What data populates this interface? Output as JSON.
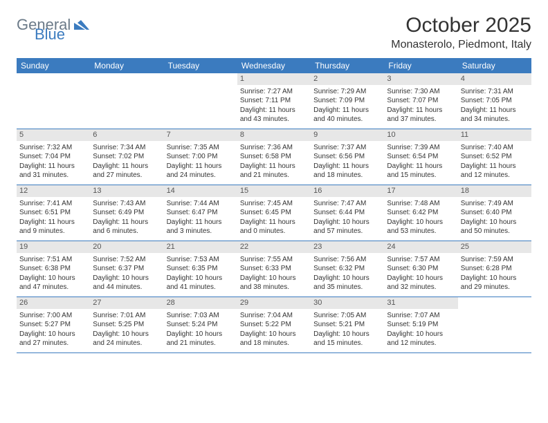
{
  "brand": {
    "text_general": "General",
    "text_blue": "Blue",
    "logo_color": "#3b7bbf",
    "gray_color": "#6b7a88"
  },
  "title": "October 2025",
  "location": "Monasterolo, Piedmont, Italy",
  "style": {
    "header_bg": "#3b7bbf",
    "header_text": "#ffffff",
    "daynum_bg": "#e7e7e7",
    "row_border": "#3b7bbf",
    "body_text": "#333333",
    "title_fontsize": 30,
    "location_fontsize": 16,
    "dayheader_fontsize": 12,
    "daynum_fontsize": 11,
    "cell_fontsize": 10
  },
  "day_names": [
    "Sunday",
    "Monday",
    "Tuesday",
    "Wednesday",
    "Thursday",
    "Friday",
    "Saturday"
  ],
  "weeks": [
    [
      null,
      null,
      null,
      {
        "n": "1",
        "sunrise": "Sunrise: 7:27 AM",
        "sunset": "Sunset: 7:11 PM",
        "daylight": "Daylight: 11 hours and 43 minutes."
      },
      {
        "n": "2",
        "sunrise": "Sunrise: 7:29 AM",
        "sunset": "Sunset: 7:09 PM",
        "daylight": "Daylight: 11 hours and 40 minutes."
      },
      {
        "n": "3",
        "sunrise": "Sunrise: 7:30 AM",
        "sunset": "Sunset: 7:07 PM",
        "daylight": "Daylight: 11 hours and 37 minutes."
      },
      {
        "n": "4",
        "sunrise": "Sunrise: 7:31 AM",
        "sunset": "Sunset: 7:05 PM",
        "daylight": "Daylight: 11 hours and 34 minutes."
      }
    ],
    [
      {
        "n": "5",
        "sunrise": "Sunrise: 7:32 AM",
        "sunset": "Sunset: 7:04 PM",
        "daylight": "Daylight: 11 hours and 31 minutes."
      },
      {
        "n": "6",
        "sunrise": "Sunrise: 7:34 AM",
        "sunset": "Sunset: 7:02 PM",
        "daylight": "Daylight: 11 hours and 27 minutes."
      },
      {
        "n": "7",
        "sunrise": "Sunrise: 7:35 AM",
        "sunset": "Sunset: 7:00 PM",
        "daylight": "Daylight: 11 hours and 24 minutes."
      },
      {
        "n": "8",
        "sunrise": "Sunrise: 7:36 AM",
        "sunset": "Sunset: 6:58 PM",
        "daylight": "Daylight: 11 hours and 21 minutes."
      },
      {
        "n": "9",
        "sunrise": "Sunrise: 7:37 AM",
        "sunset": "Sunset: 6:56 PM",
        "daylight": "Daylight: 11 hours and 18 minutes."
      },
      {
        "n": "10",
        "sunrise": "Sunrise: 7:39 AM",
        "sunset": "Sunset: 6:54 PM",
        "daylight": "Daylight: 11 hours and 15 minutes."
      },
      {
        "n": "11",
        "sunrise": "Sunrise: 7:40 AM",
        "sunset": "Sunset: 6:52 PM",
        "daylight": "Daylight: 11 hours and 12 minutes."
      }
    ],
    [
      {
        "n": "12",
        "sunrise": "Sunrise: 7:41 AM",
        "sunset": "Sunset: 6:51 PM",
        "daylight": "Daylight: 11 hours and 9 minutes."
      },
      {
        "n": "13",
        "sunrise": "Sunrise: 7:43 AM",
        "sunset": "Sunset: 6:49 PM",
        "daylight": "Daylight: 11 hours and 6 minutes."
      },
      {
        "n": "14",
        "sunrise": "Sunrise: 7:44 AM",
        "sunset": "Sunset: 6:47 PM",
        "daylight": "Daylight: 11 hours and 3 minutes."
      },
      {
        "n": "15",
        "sunrise": "Sunrise: 7:45 AM",
        "sunset": "Sunset: 6:45 PM",
        "daylight": "Daylight: 11 hours and 0 minutes."
      },
      {
        "n": "16",
        "sunrise": "Sunrise: 7:47 AM",
        "sunset": "Sunset: 6:44 PM",
        "daylight": "Daylight: 10 hours and 57 minutes."
      },
      {
        "n": "17",
        "sunrise": "Sunrise: 7:48 AM",
        "sunset": "Sunset: 6:42 PM",
        "daylight": "Daylight: 10 hours and 53 minutes."
      },
      {
        "n": "18",
        "sunrise": "Sunrise: 7:49 AM",
        "sunset": "Sunset: 6:40 PM",
        "daylight": "Daylight: 10 hours and 50 minutes."
      }
    ],
    [
      {
        "n": "19",
        "sunrise": "Sunrise: 7:51 AM",
        "sunset": "Sunset: 6:38 PM",
        "daylight": "Daylight: 10 hours and 47 minutes."
      },
      {
        "n": "20",
        "sunrise": "Sunrise: 7:52 AM",
        "sunset": "Sunset: 6:37 PM",
        "daylight": "Daylight: 10 hours and 44 minutes."
      },
      {
        "n": "21",
        "sunrise": "Sunrise: 7:53 AM",
        "sunset": "Sunset: 6:35 PM",
        "daylight": "Daylight: 10 hours and 41 minutes."
      },
      {
        "n": "22",
        "sunrise": "Sunrise: 7:55 AM",
        "sunset": "Sunset: 6:33 PM",
        "daylight": "Daylight: 10 hours and 38 minutes."
      },
      {
        "n": "23",
        "sunrise": "Sunrise: 7:56 AM",
        "sunset": "Sunset: 6:32 PM",
        "daylight": "Daylight: 10 hours and 35 minutes."
      },
      {
        "n": "24",
        "sunrise": "Sunrise: 7:57 AM",
        "sunset": "Sunset: 6:30 PM",
        "daylight": "Daylight: 10 hours and 32 minutes."
      },
      {
        "n": "25",
        "sunrise": "Sunrise: 7:59 AM",
        "sunset": "Sunset: 6:28 PM",
        "daylight": "Daylight: 10 hours and 29 minutes."
      }
    ],
    [
      {
        "n": "26",
        "sunrise": "Sunrise: 7:00 AM",
        "sunset": "Sunset: 5:27 PM",
        "daylight": "Daylight: 10 hours and 27 minutes."
      },
      {
        "n": "27",
        "sunrise": "Sunrise: 7:01 AM",
        "sunset": "Sunset: 5:25 PM",
        "daylight": "Daylight: 10 hours and 24 minutes."
      },
      {
        "n": "28",
        "sunrise": "Sunrise: 7:03 AM",
        "sunset": "Sunset: 5:24 PM",
        "daylight": "Daylight: 10 hours and 21 minutes."
      },
      {
        "n": "29",
        "sunrise": "Sunrise: 7:04 AM",
        "sunset": "Sunset: 5:22 PM",
        "daylight": "Daylight: 10 hours and 18 minutes."
      },
      {
        "n": "30",
        "sunrise": "Sunrise: 7:05 AM",
        "sunset": "Sunset: 5:21 PM",
        "daylight": "Daylight: 10 hours and 15 minutes."
      },
      {
        "n": "31",
        "sunrise": "Sunrise: 7:07 AM",
        "sunset": "Sunset: 5:19 PM",
        "daylight": "Daylight: 10 hours and 12 minutes."
      },
      null
    ]
  ]
}
